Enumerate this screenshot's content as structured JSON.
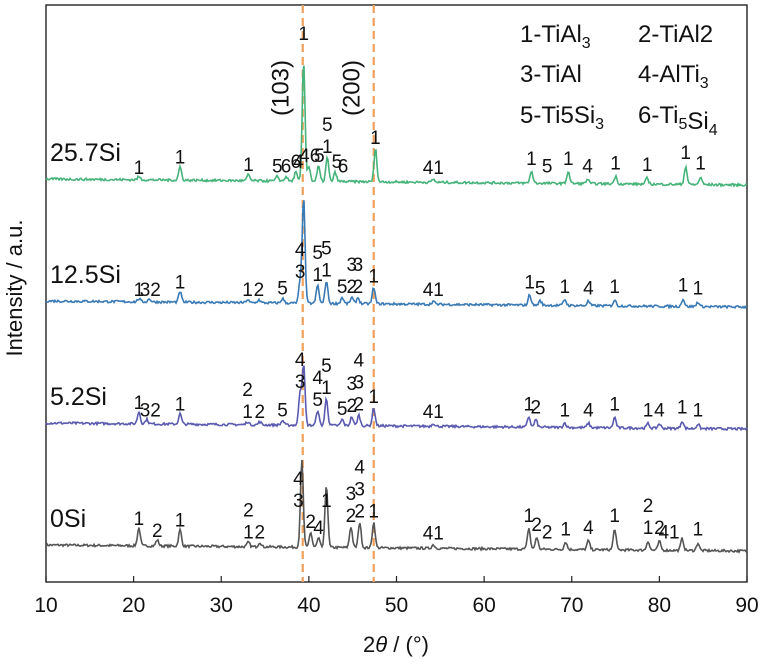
{
  "chart_data": {
    "type": "line",
    "xlabel": "2θ / (°)",
    "ylabel": "Intensity / a.u.",
    "xlim": [
      10,
      90
    ],
    "xticks": [
      10,
      20,
      30,
      40,
      50,
      60,
      70,
      80,
      90
    ],
    "grid": false,
    "legend_position": "top-right",
    "legend": [
      {
        "id": "1",
        "phase": "TiAl3",
        "label": "1-TiAl3"
      },
      {
        "id": "2",
        "phase": "TiAl2",
        "label": "2-TiAl2"
      },
      {
        "id": "3",
        "phase": "TiAl",
        "label": "3-TiAl"
      },
      {
        "id": "4",
        "phase": "AlTi3",
        "label": "4-AlTi3"
      },
      {
        "id": "5",
        "phase": "Ti5Si3",
        "label": "5-Ti5Si3"
      },
      {
        "id": "6",
        "phase": "Ti5Si4",
        "label": "6-Ti5Si4"
      }
    ],
    "reference_lines": [
      {
        "x": 39.3,
        "label": "(103)",
        "color": "#f0a05a"
      },
      {
        "x": 47.4,
        "label": "(200)",
        "color": "#f0a05a"
      }
    ],
    "series": [
      {
        "name": "0Si",
        "color": "#555555",
        "offset": 0.0,
        "peaks": [
          [
            20.6,
            0.6
          ],
          [
            22.7,
            0.2
          ],
          [
            25.3,
            0.55
          ],
          [
            33.1,
            0.15
          ],
          [
            34.4,
            0.15
          ],
          [
            39.2,
            2.9
          ],
          [
            40.2,
            0.5
          ],
          [
            41.1,
            0.3
          ],
          [
            42.0,
            2.1
          ],
          [
            44.8,
            0.7
          ],
          [
            45.8,
            0.85
          ],
          [
            47.4,
            0.85
          ],
          [
            54.2,
            0.12
          ],
          [
            65.1,
            0.7
          ],
          [
            66.0,
            0.4
          ],
          [
            69.3,
            0.25
          ],
          [
            71.9,
            0.3
          ],
          [
            74.9,
            0.7
          ],
          [
            78.7,
            0.3
          ],
          [
            80.0,
            0.3
          ],
          [
            82.6,
            0.4
          ],
          [
            84.4,
            0.25
          ]
        ],
        "labels": [
          [
            20.6,
            "1"
          ],
          [
            22.7,
            "2"
          ],
          [
            25.3,
            "1"
          ],
          [
            33.1,
            "2"
          ],
          [
            33.1,
            "1"
          ],
          [
            34.4,
            "2"
          ],
          [
            38.8,
            "4"
          ],
          [
            38.8,
            "3"
          ],
          [
            40.2,
            "2"
          ],
          [
            41.1,
            "4"
          ],
          [
            42.0,
            "1"
          ],
          [
            44.8,
            "3"
          ],
          [
            44.8,
            "2"
          ],
          [
            45.8,
            "4"
          ],
          [
            45.8,
            "3"
          ],
          [
            45.8,
            "2"
          ],
          [
            47.4,
            "1"
          ],
          [
            54.2,
            "41"
          ],
          [
            65.1,
            "1"
          ],
          [
            66.0,
            "2"
          ],
          [
            67.2,
            "2"
          ],
          [
            69.3,
            "1"
          ],
          [
            71.9,
            "4"
          ],
          [
            74.9,
            "1"
          ],
          [
            78.7,
            "2"
          ],
          [
            78.7,
            "1"
          ],
          [
            80.0,
            "2"
          ],
          [
            81.1,
            "41"
          ],
          [
            84.4,
            "1"
          ]
        ]
      },
      {
        "name": "5.2Si",
        "color": "#5a5ab0",
        "offset": 1.0,
        "peaks": [
          [
            20.6,
            0.4
          ],
          [
            21.5,
            0.15
          ],
          [
            25.3,
            0.35
          ],
          [
            33.0,
            0.1
          ],
          [
            34.4,
            0.1
          ],
          [
            37.0,
            0.15
          ],
          [
            39.0,
            1.1
          ],
          [
            39.4,
            2.0
          ],
          [
            41.0,
            0.5
          ],
          [
            42.0,
            0.9
          ],
          [
            43.8,
            0.2
          ],
          [
            44.9,
            0.3
          ],
          [
            45.7,
            0.35
          ],
          [
            47.4,
            0.6
          ],
          [
            54.2,
            0.1
          ],
          [
            65.1,
            0.35
          ],
          [
            65.9,
            0.25
          ],
          [
            69.2,
            0.15
          ],
          [
            71.9,
            0.15
          ],
          [
            74.9,
            0.35
          ],
          [
            78.7,
            0.15
          ],
          [
            80.0,
            0.15
          ],
          [
            82.6,
            0.25
          ],
          [
            84.4,
            0.15
          ]
        ],
        "labels": [
          [
            20.6,
            "1"
          ],
          [
            21.9,
            "32"
          ],
          [
            25.3,
            "1"
          ],
          [
            33.0,
            "2"
          ],
          [
            33.0,
            "1"
          ],
          [
            34.4,
            "2"
          ],
          [
            37.0,
            "5"
          ],
          [
            39.0,
            "4"
          ],
          [
            39.0,
            "3"
          ],
          [
            41.0,
            "4"
          ],
          [
            41.0,
            "5"
          ],
          [
            42.0,
            "5"
          ],
          [
            42.0,
            "1"
          ],
          [
            43.8,
            "5"
          ],
          [
            44.9,
            "3"
          ],
          [
            44.9,
            "2"
          ],
          [
            45.7,
            "4"
          ],
          [
            45.7,
            "3"
          ],
          [
            45.7,
            "2"
          ],
          [
            47.4,
            "1"
          ],
          [
            54.2,
            "41"
          ],
          [
            65.1,
            "1"
          ],
          [
            65.9,
            "2"
          ],
          [
            69.2,
            "1"
          ],
          [
            71.9,
            "4"
          ],
          [
            74.9,
            "1"
          ],
          [
            78.7,
            "1"
          ],
          [
            80.0,
            "4"
          ],
          [
            82.6,
            "1"
          ],
          [
            84.4,
            "1"
          ]
        ]
      },
      {
        "name": "12.5Si",
        "color": "#3a7ab5",
        "offset": 2.0,
        "peaks": [
          [
            20.6,
            0.1
          ],
          [
            21.8,
            0.1
          ],
          [
            25.3,
            0.35
          ],
          [
            33.0,
            0.1
          ],
          [
            34.3,
            0.1
          ],
          [
            37.0,
            0.15
          ],
          [
            39.0,
            0.7
          ],
          [
            39.4,
            3.5
          ],
          [
            41.0,
            0.6
          ],
          [
            42.0,
            0.75
          ],
          [
            43.8,
            0.2
          ],
          [
            44.9,
            0.2
          ],
          [
            45.6,
            0.2
          ],
          [
            47.4,
            0.55
          ],
          [
            54.2,
            0.1
          ],
          [
            65.2,
            0.35
          ],
          [
            66.4,
            0.15
          ],
          [
            69.2,
            0.2
          ],
          [
            71.9,
            0.15
          ],
          [
            74.9,
            0.2
          ],
          [
            82.7,
            0.25
          ],
          [
            84.4,
            0.15
          ]
        ],
        "labels": [
          [
            20.6,
            "1"
          ],
          [
            21.9,
            "32"
          ],
          [
            25.3,
            "1"
          ],
          [
            33.0,
            "1"
          ],
          [
            34.3,
            "2"
          ],
          [
            37.0,
            "5"
          ],
          [
            39.0,
            "4"
          ],
          [
            39.0,
            "3"
          ],
          [
            41.0,
            "5"
          ],
          [
            41.0,
            "1"
          ],
          [
            42.0,
            "5"
          ],
          [
            42.0,
            "1"
          ],
          [
            43.8,
            "5"
          ],
          [
            44.9,
            "3"
          ],
          [
            44.9,
            "2"
          ],
          [
            45.6,
            "3"
          ],
          [
            45.6,
            "2"
          ],
          [
            47.4,
            "1"
          ],
          [
            54.2,
            "41"
          ],
          [
            65.2,
            "1"
          ],
          [
            66.4,
            "5"
          ],
          [
            69.2,
            "1"
          ],
          [
            71.9,
            "4"
          ],
          [
            74.9,
            "1"
          ],
          [
            82.7,
            "1"
          ],
          [
            84.4,
            "1"
          ]
        ]
      },
      {
        "name": "25.7Si",
        "color": "#46b37a",
        "offset": 3.0,
        "peaks": [
          [
            20.6,
            0.1
          ],
          [
            25.3,
            0.45
          ],
          [
            33.1,
            0.2
          ],
          [
            36.4,
            0.15
          ],
          [
            37.4,
            0.15
          ],
          [
            38.5,
            0.3
          ],
          [
            39.4,
            4.0
          ],
          [
            40.0,
            0.5
          ],
          [
            41.1,
            0.5
          ],
          [
            42.1,
            0.8
          ],
          [
            43.0,
            0.3
          ],
          [
            47.6,
            1.1
          ],
          [
            54.2,
            0.1
          ],
          [
            65.4,
            0.4
          ],
          [
            69.6,
            0.4
          ],
          [
            71.8,
            0.15
          ],
          [
            75.0,
            0.25
          ],
          [
            78.6,
            0.2
          ],
          [
            83.0,
            0.6
          ],
          [
            84.7,
            0.25
          ]
        ],
        "labels": [
          [
            20.6,
            "1"
          ],
          [
            25.3,
            "1"
          ],
          [
            33.1,
            "1"
          ],
          [
            36.4,
            "5"
          ],
          [
            37.4,
            "6"
          ],
          [
            38.5,
            "6"
          ],
          [
            38.8,
            "4"
          ],
          [
            40.1,
            "46"
          ],
          [
            41.2,
            "5"
          ],
          [
            42.1,
            "5"
          ],
          [
            42.1,
            "1"
          ],
          [
            43.2,
            "5"
          ],
          [
            43.9,
            "6"
          ],
          [
            47.6,
            "1"
          ],
          [
            54.2,
            "41"
          ],
          [
            65.4,
            "1"
          ],
          [
            67.2,
            "5"
          ],
          [
            69.6,
            "1"
          ],
          [
            71.8,
            "4"
          ],
          [
            75.0,
            "1"
          ],
          [
            78.6,
            "1"
          ],
          [
            83.0,
            "1"
          ],
          [
            84.7,
            "1"
          ]
        ]
      }
    ],
    "top_peak_label": [
      39.4,
      "1"
    ]
  }
}
